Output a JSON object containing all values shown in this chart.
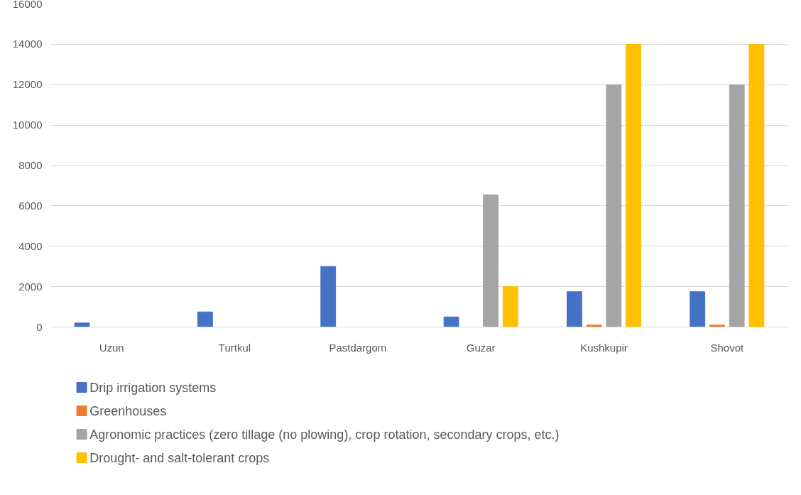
{
  "chart_data": {
    "type": "bar",
    "categories": [
      "Uzun",
      "Turtkul",
      "Pastdargom",
      "Guzar",
      "Kushkupir",
      "Shovot"
    ],
    "series": [
      {
        "name": "Drip irrigation systems",
        "color": "#4472c4",
        "values": [
          200,
          750,
          3000,
          500,
          1750,
          1750
        ]
      },
      {
        "name": "Greenhouses",
        "color": "#ed7d31",
        "values": [
          0,
          0,
          0,
          0,
          100,
          100
        ]
      },
      {
        "name": "Agronomic practices (zero tillage (no plowing), crop rotation, secondary crops, etc.)",
        "color": "#a5a5a5",
        "values": [
          0,
          0,
          0,
          6550,
          12000,
          12000
        ]
      },
      {
        "name": "Drought- and salt-tolerant crops",
        "color": "#ffc000",
        "values": [
          0,
          0,
          0,
          2000,
          14000,
          14000
        ]
      }
    ],
    "ylim": [
      0,
      16000
    ],
    "yticks": [
      0,
      2000,
      4000,
      6000,
      8000,
      10000,
      12000,
      14000,
      16000
    ],
    "grid": "y",
    "legend": "bottom"
  }
}
